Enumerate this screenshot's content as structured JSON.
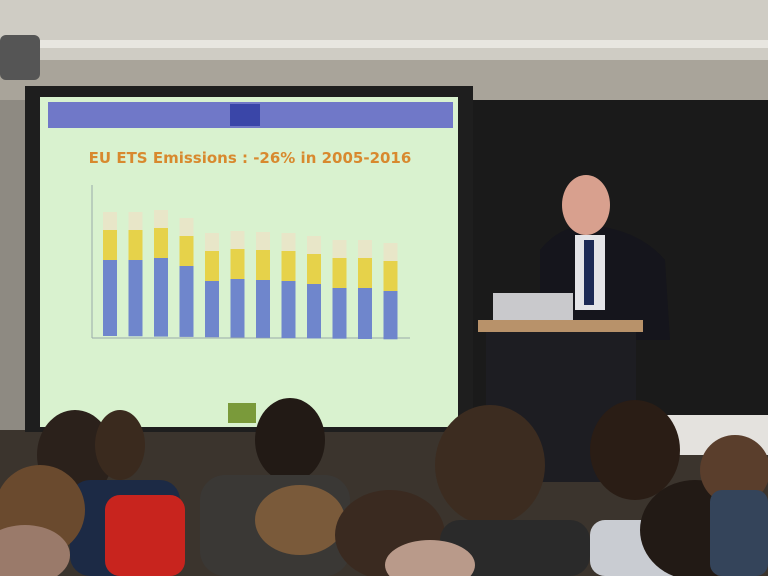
{
  "slide": {
    "title": "EU ETS Emissions : -26% in 2005-2016"
  }
}
